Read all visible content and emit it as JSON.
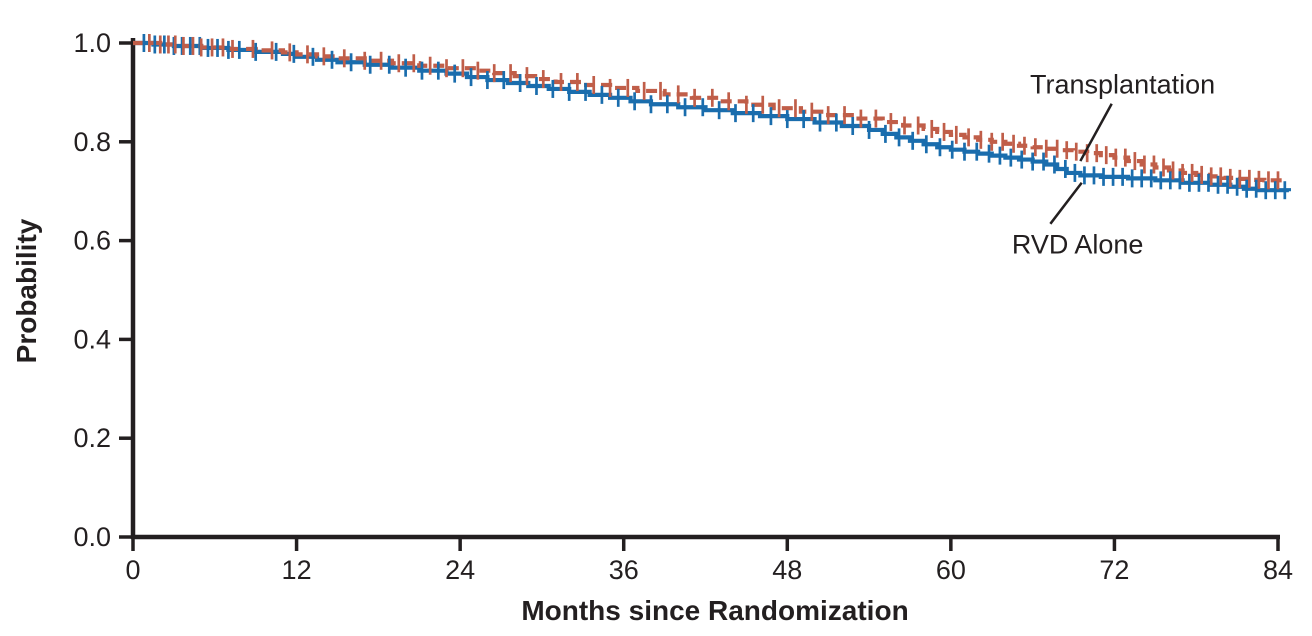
{
  "figure": {
    "background_color": "#ffffff",
    "text_color": "#231f20",
    "axis_color": "#231f20"
  },
  "chart_data": {
    "type": "line",
    "subtype": "kaplan-meier",
    "title": "",
    "xlabel": "Months since Randomization",
    "ylabel": "Probability",
    "xlim": [
      0,
      84
    ],
    "ylim": [
      0.0,
      1.0
    ],
    "x_ticks": [
      0,
      12,
      24,
      36,
      48,
      60,
      72,
      84
    ],
    "y_ticks": [
      0.0,
      0.2,
      0.4,
      0.6,
      0.8,
      1.0
    ],
    "y_tick_labels": [
      "0.0",
      "0.2",
      "0.4",
      "0.6",
      "0.8",
      "1.0"
    ],
    "grid": false,
    "legend_position": "inline-annotations",
    "series": [
      {
        "name": "RVD Alone",
        "color": "#1a6dad",
        "line_style": "solid",
        "points": [
          [
            0,
            1.0
          ],
          [
            1.5,
            0.997
          ],
          [
            3,
            0.994
          ],
          [
            5,
            0.99
          ],
          [
            7,
            0.986
          ],
          [
            9,
            0.982
          ],
          [
            11,
            0.978
          ],
          [
            12,
            0.972
          ],
          [
            13.5,
            0.966
          ],
          [
            15,
            0.961
          ],
          [
            17,
            0.956
          ],
          [
            19,
            0.95
          ],
          [
            21,
            0.944
          ],
          [
            23,
            0.938
          ],
          [
            24.5,
            0.931
          ],
          [
            26,
            0.925
          ],
          [
            27.5,
            0.919
          ],
          [
            29,
            0.913
          ],
          [
            30.5,
            0.907
          ],
          [
            32,
            0.901
          ],
          [
            33.5,
            0.895
          ],
          [
            35,
            0.889
          ],
          [
            36.5,
            0.882
          ],
          [
            38,
            0.876
          ],
          [
            40,
            0.87
          ],
          [
            42,
            0.864
          ],
          [
            44,
            0.858
          ],
          [
            46,
            0.852
          ],
          [
            48,
            0.846
          ],
          [
            50,
            0.839
          ],
          [
            52,
            0.832
          ],
          [
            54,
            0.824
          ],
          [
            55,
            0.816
          ],
          [
            56,
            0.809
          ],
          [
            57,
            0.802
          ],
          [
            58,
            0.795
          ],
          [
            59,
            0.789
          ],
          [
            60,
            0.784
          ],
          [
            61,
            0.78
          ],
          [
            62,
            0.776
          ],
          [
            63,
            0.772
          ],
          [
            64,
            0.768
          ],
          [
            65,
            0.764
          ],
          [
            66,
            0.76
          ],
          [
            67,
            0.754
          ],
          [
            67.8,
            0.745
          ],
          [
            68.5,
            0.737
          ],
          [
            69.5,
            0.732
          ],
          [
            71,
            0.729
          ],
          [
            73,
            0.726
          ],
          [
            75,
            0.722
          ],
          [
            77,
            0.717
          ],
          [
            79,
            0.713
          ],
          [
            80.5,
            0.709
          ],
          [
            81.5,
            0.705
          ],
          [
            82.5,
            0.702
          ],
          [
            84.8,
            0.7
          ]
        ],
        "censor_months": [
          0.8,
          1.6,
          2.3,
          3.0,
          3.6,
          4.2,
          4.9,
          5.5,
          6.2,
          7.0,
          7.8,
          9.0,
          10.5,
          11.8,
          13.2,
          14.6,
          16.0,
          17.4,
          18.8,
          20.0,
          21.2,
          22.4,
          23.6,
          24.8,
          26.0,
          27.2,
          28.4,
          29.6,
          30.8,
          32.0,
          33.2,
          34.4,
          35.6,
          36.8,
          38.0,
          39.2,
          40.5,
          41.8,
          43.0,
          44.2,
          45.5,
          46.8,
          48.0,
          49.2,
          50.4,
          51.6,
          52.8,
          54.0,
          55.2,
          56.2,
          57.2,
          58.2,
          59.2,
          60.1,
          61.0,
          61.9,
          62.8,
          63.6,
          64.4,
          65.2,
          66.0,
          66.8,
          67.6,
          68.4,
          69.1,
          69.8,
          70.5,
          71.2,
          71.9,
          72.6,
          73.3,
          74.0,
          74.7,
          75.4,
          76.1,
          76.8,
          77.5,
          78.2,
          78.9,
          79.6,
          80.3,
          81.0,
          81.7,
          82.4,
          83.1,
          83.8,
          84.5
        ]
      },
      {
        "name": "Transplantation",
        "color": "#c05e49",
        "line_style": "dashed",
        "points": [
          [
            0,
            1.0
          ],
          [
            2,
            0.997
          ],
          [
            3.5,
            0.994
          ],
          [
            5,
            0.991
          ],
          [
            7,
            0.988
          ],
          [
            9,
            0.985
          ],
          [
            11,
            0.981
          ],
          [
            12,
            0.977
          ],
          [
            13.5,
            0.973
          ],
          [
            15,
            0.969
          ],
          [
            17,
            0.964
          ],
          [
            19,
            0.959
          ],
          [
            21,
            0.954
          ],
          [
            23,
            0.949
          ],
          [
            25,
            0.944
          ],
          [
            26.5,
            0.939
          ],
          [
            28,
            0.933
          ],
          [
            29.5,
            0.927
          ],
          [
            31,
            0.921
          ],
          [
            33,
            0.915
          ],
          [
            35,
            0.909
          ],
          [
            37,
            0.903
          ],
          [
            39,
            0.896
          ],
          [
            41,
            0.889
          ],
          [
            43,
            0.882
          ],
          [
            45,
            0.875
          ],
          [
            47,
            0.868
          ],
          [
            49,
            0.861
          ],
          [
            51,
            0.854
          ],
          [
            53,
            0.847
          ],
          [
            55,
            0.84
          ],
          [
            56.5,
            0.833
          ],
          [
            58,
            0.826
          ],
          [
            59,
            0.82
          ],
          [
            60,
            0.814
          ],
          [
            61,
            0.809
          ],
          [
            62,
            0.804
          ],
          [
            63,
            0.8
          ],
          [
            64,
            0.796
          ],
          [
            65,
            0.792
          ],
          [
            66,
            0.789
          ],
          [
            67,
            0.786
          ],
          [
            68,
            0.783
          ],
          [
            69,
            0.78
          ],
          [
            70,
            0.777
          ],
          [
            71,
            0.773
          ],
          [
            72,
            0.768
          ],
          [
            73,
            0.761
          ],
          [
            74,
            0.754
          ],
          [
            75,
            0.748
          ],
          [
            76,
            0.742
          ],
          [
            77,
            0.737
          ],
          [
            78,
            0.733
          ],
          [
            79,
            0.73
          ],
          [
            80,
            0.727
          ],
          [
            81,
            0.725
          ],
          [
            82,
            0.723
          ],
          [
            83,
            0.722
          ],
          [
            84.3,
            0.721
          ]
        ],
        "censor_months": [
          1.2,
          2.0,
          2.6,
          3.1,
          3.7,
          4.4,
          5.0,
          5.8,
          6.6,
          7.3,
          8.8,
          10.2,
          11.5,
          12.8,
          14.0,
          15.5,
          17.0,
          18.2,
          19.5,
          20.6,
          21.8,
          23.0,
          24.2,
          25.3,
          26.5,
          27.7,
          28.9,
          30.1,
          31.4,
          32.6,
          33.8,
          35.0,
          36.3,
          37.5,
          38.7,
          40.0,
          41.2,
          42.5,
          43.7,
          45.0,
          46.2,
          47.4,
          48.6,
          49.8,
          51.0,
          52.2,
          53.4,
          54.5,
          55.6,
          56.6,
          57.6,
          58.6,
          59.5,
          60.4,
          61.3,
          62.2,
          63.0,
          63.8,
          64.6,
          65.4,
          66.2,
          67.0,
          67.8,
          68.5,
          69.2,
          70.0,
          70.7,
          71.4,
          72.1,
          72.8,
          73.5,
          74.2,
          74.9,
          75.6,
          76.3,
          77.0,
          77.7,
          78.4,
          79.1,
          79.8,
          80.5,
          81.2,
          81.9,
          82.6,
          83.3,
          84.0
        ]
      }
    ],
    "annotations": [
      {
        "text": "Transplantation",
        "series": "Transplantation",
        "text_month": 72.6,
        "text_prob": 0.915,
        "pointer": [
          [
            71.8,
            0.877
          ],
          [
            69.5,
            0.761
          ]
        ]
      },
      {
        "text": "RVD Alone",
        "series": "RVD Alone",
        "text_month": 69.3,
        "text_prob": 0.591,
        "pointer": [
          [
            67.3,
            0.634
          ],
          [
            69.6,
            0.717
          ]
        ]
      }
    ]
  }
}
